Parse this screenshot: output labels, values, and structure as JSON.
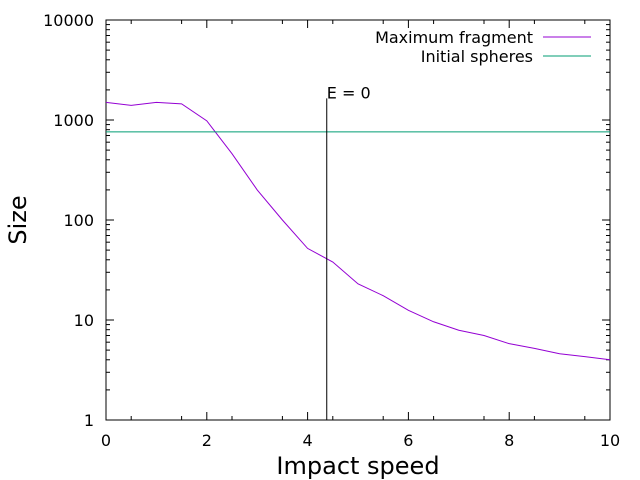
{
  "chart_data": {
    "type": "line",
    "title": "",
    "xlabel": "Impact speed",
    "ylabel": "Size",
    "xlim": [
      0,
      10
    ],
    "ylim": [
      1,
      10000
    ],
    "yscale": "log",
    "xticks": [
      0,
      2,
      4,
      6,
      8,
      10
    ],
    "xtick_labels": [
      "0",
      "2",
      "4",
      "6",
      "8",
      "10"
    ],
    "yticks": [
      1,
      10,
      100,
      1000,
      10000
    ],
    "ytick_labels": [
      "1",
      "10",
      "100",
      "1000",
      "10000"
    ],
    "grid": false,
    "legend_position": "top-right",
    "series": [
      {
        "name": "Maximum fragment",
        "color": "#9400d3",
        "x": [
          0,
          0.5,
          1,
          1.5,
          2,
          2.5,
          3,
          3.5,
          4,
          4.5,
          5,
          5.5,
          6,
          6.5,
          7,
          7.5,
          8,
          8.5,
          9,
          9.5,
          10
        ],
        "y": [
          1500,
          1400,
          1500,
          1450,
          980,
          460,
          200,
          100,
          52,
          38,
          23,
          17.5,
          12.5,
          9.6,
          7.9,
          7.0,
          5.8,
          5.2,
          4.6,
          4.3,
          4.0
        ]
      },
      {
        "name": "Initial spheres",
        "color": "#009e73",
        "x": [
          0,
          10
        ],
        "y": [
          760,
          760
        ]
      }
    ],
    "annotations": [
      {
        "text": "E = 0",
        "x": 4.38,
        "y_from": 1,
        "y_to": 1500
      }
    ]
  }
}
